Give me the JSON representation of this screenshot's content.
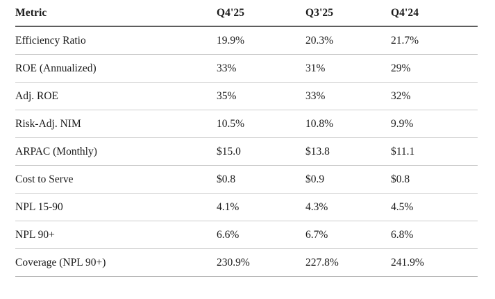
{
  "colors": {
    "background": "#ffffff",
    "text": "#1a1a1a",
    "header_rule": "#5e5e5e",
    "row_rule": "#cccccc",
    "bottom_rule": "#b5b5b5"
  },
  "chart_data": {
    "type": "table",
    "columns": [
      "Metric",
      "Q4'25",
      "Q3'25",
      "Q4'24"
    ],
    "rows": [
      [
        "Efficiency Ratio",
        "19.9%",
        "20.3%",
        "21.7%"
      ],
      [
        "ROE (Annualized)",
        "33%",
        "31%",
        "29%"
      ],
      [
        "Adj. ROE",
        "35%",
        "33%",
        "32%"
      ],
      [
        "Risk-Adj. NIM",
        "10.5%",
        "10.8%",
        "9.9%"
      ],
      [
        "ARPAC (Monthly)",
        "$15.0",
        "$13.8",
        "$11.1"
      ],
      [
        "Cost to Serve",
        "$0.8",
        "$0.9",
        "$0.8"
      ],
      [
        "NPL 15-90",
        "4.1%",
        "4.3%",
        "4.5%"
      ],
      [
        "NPL 90+",
        "6.6%",
        "6.7%",
        "6.8%"
      ],
      [
        "Coverage (NPL 90+)",
        "230.9%",
        "227.8%",
        "241.9%"
      ]
    ]
  }
}
